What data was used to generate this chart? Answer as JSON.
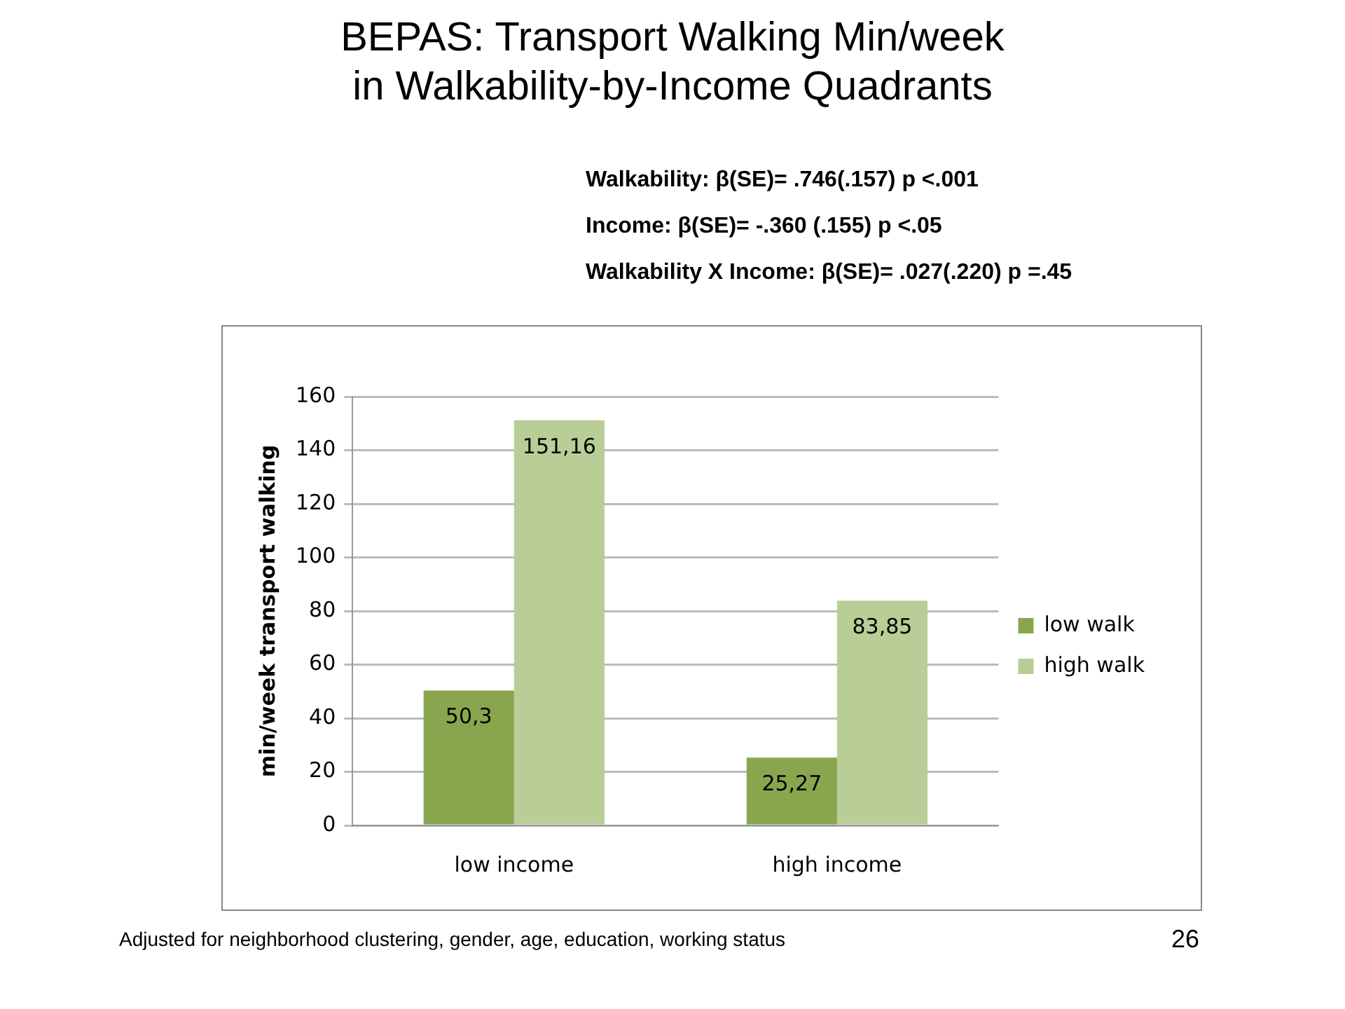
{
  "chart_data": {
    "type": "bar",
    "title": "BEPAS: Transport Walking Min/week\nin Walkability-by-Income Quadrants",
    "annotations": [
      "Walkability: β(SE)= .746(.157) p <.001",
      "Income: β(SE)= -.360 (.155) p <.05",
      "Walkability X Income: β(SE)= .027(.220) p =.45",
      "Adjusted for neighborhood clustering, gender, age, education, working status",
      "26"
    ],
    "ylabel": "min/week transport walking",
    "categories": [
      "low income",
      "high income"
    ],
    "series": [
      {
        "name": "low walk",
        "color": "#89a64e",
        "values": [
          50.3,
          25.27
        ],
        "value_labels": [
          "50,3",
          "25,27"
        ]
      },
      {
        "name": "high walk",
        "color": "#b9cd96",
        "values": [
          151.16,
          83.85
        ],
        "value_labels": [
          "151,16",
          "83,85"
        ]
      }
    ],
    "ylim": [
      0,
      160
    ],
    "yticks": [
      0,
      20,
      40,
      60,
      80,
      100,
      120,
      140,
      160
    ],
    "grid": "y",
    "legend": "right"
  }
}
